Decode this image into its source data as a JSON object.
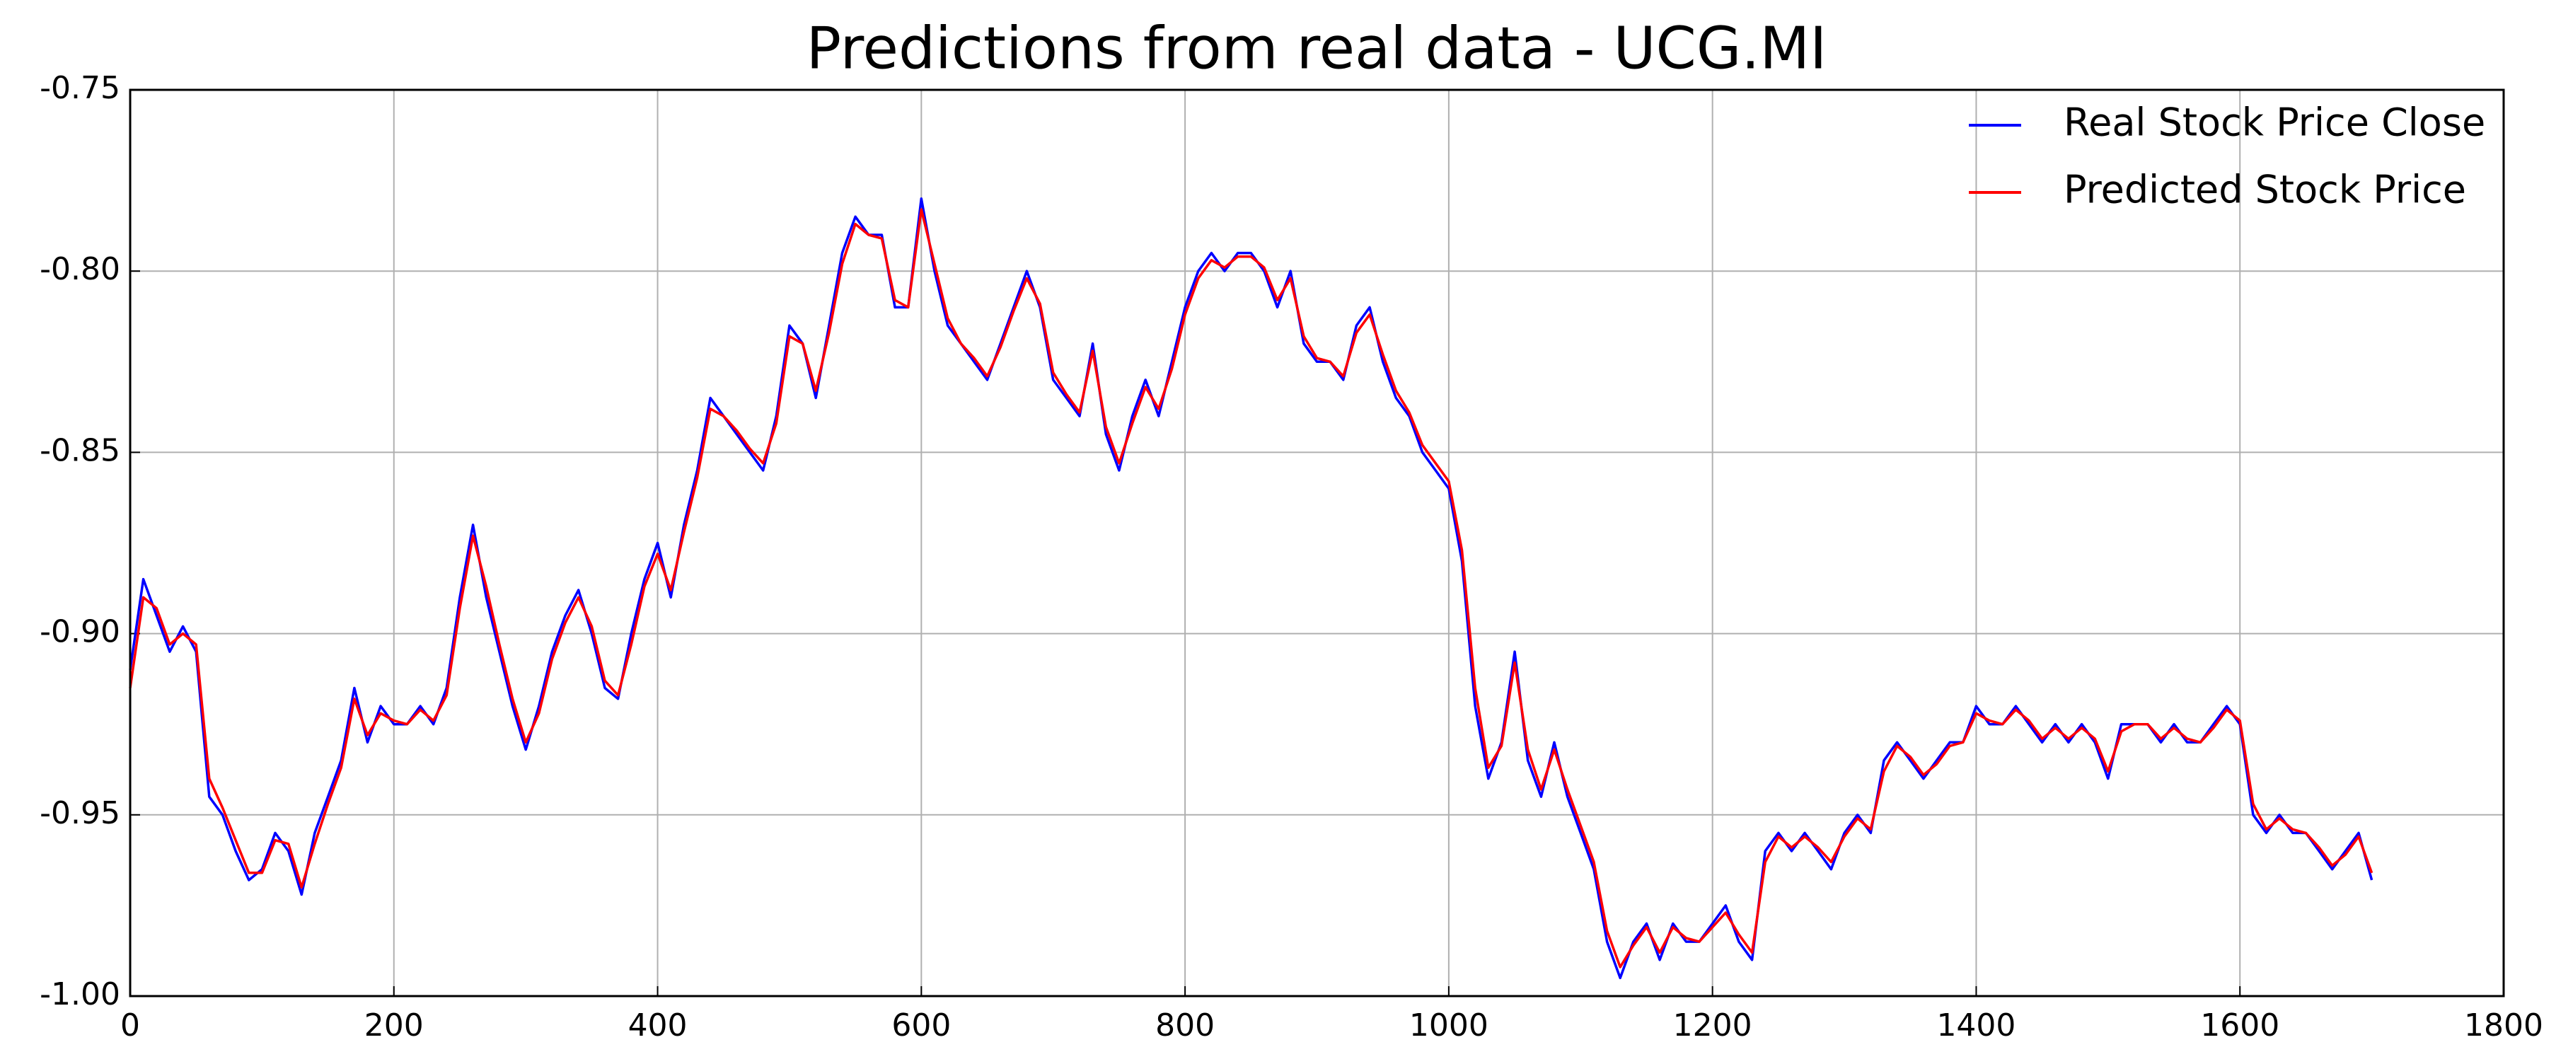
{
  "chart_data": {
    "type": "line",
    "title": "Predictions from real data - UCG.MI",
    "xlim": [
      0,
      1800
    ],
    "xticks": [
      0,
      200,
      400,
      600,
      800,
      1000,
      1200,
      1400,
      1600,
      1800
    ],
    "ylim": [
      -1.0,
      -0.75
    ],
    "yticks": [
      {
        "value": -1.0,
        "label": "-1.00"
      },
      -0.95,
      {
        "value": -0.9,
        "label": "-0.90"
      },
      -0.85,
      {
        "value": -0.8,
        "label": "-0.80"
      },
      -0.75
    ],
    "grid": true,
    "legend": "upper right",
    "x": [
      0,
      10,
      20,
      30,
      40,
      50,
      60,
      70,
      80,
      90,
      100,
      110,
      120,
      130,
      140,
      150,
      160,
      170,
      180,
      190,
      200,
      210,
      220,
      230,
      240,
      250,
      260,
      270,
      280,
      290,
      300,
      310,
      320,
      330,
      340,
      350,
      360,
      370,
      380,
      390,
      400,
      410,
      420,
      430,
      440,
      450,
      460,
      470,
      480,
      490,
      500,
      510,
      520,
      530,
      540,
      550,
      560,
      570,
      580,
      590,
      600,
      610,
      620,
      630,
      640,
      650,
      660,
      670,
      680,
      690,
      700,
      710,
      720,
      730,
      740,
      750,
      760,
      770,
      780,
      790,
      800,
      810,
      820,
      830,
      840,
      850,
      860,
      870,
      880,
      890,
      900,
      910,
      920,
      930,
      940,
      950,
      960,
      970,
      980,
      990,
      1000,
      1010,
      1020,
      1030,
      1040,
      1050,
      1060,
      1070,
      1080,
      1090,
      1100,
      1110,
      1120,
      1130,
      1140,
      1150,
      1160,
      1170,
      1180,
      1190,
      1200,
      1210,
      1220,
      1230,
      1240,
      1250,
      1260,
      1270,
      1280,
      1290,
      1300,
      1310,
      1320,
      1330,
      1340,
      1350,
      1360,
      1370,
      1380,
      1390,
      1400,
      1410,
      1420,
      1430,
      1440,
      1450,
      1460,
      1470,
      1480,
      1490,
      1500,
      1510,
      1520,
      1530,
      1540,
      1550,
      1560,
      1570,
      1580,
      1590,
      1600,
      1610,
      1620,
      1630,
      1640,
      1650,
      1660,
      1670,
      1680,
      1690,
      1700
    ],
    "series": [
      {
        "name": "Real Stock Price Close",
        "color": "#0000ff",
        "values": [
          -0.91,
          -0.885,
          -0.895,
          -0.905,
          -0.898,
          -0.905,
          -0.945,
          -0.95,
          -0.96,
          -0.968,
          -0.965,
          -0.955,
          -0.96,
          -0.972,
          -0.955,
          -0.945,
          -0.935,
          -0.915,
          -0.93,
          -0.92,
          -0.925,
          -0.925,
          -0.92,
          -0.925,
          -0.915,
          -0.89,
          -0.87,
          -0.89,
          -0.905,
          -0.92,
          -0.932,
          -0.92,
          -0.905,
          -0.895,
          -0.888,
          -0.9,
          -0.915,
          -0.918,
          -0.9,
          -0.885,
          -0.875,
          -0.89,
          -0.87,
          -0.855,
          -0.835,
          -0.84,
          -0.845,
          -0.85,
          -0.855,
          -0.84,
          -0.815,
          -0.82,
          -0.835,
          -0.815,
          -0.795,
          -0.785,
          -0.79,
          -0.79,
          -0.81,
          -0.81,
          -0.78,
          -0.8,
          -0.815,
          -0.82,
          -0.825,
          -0.83,
          -0.82,
          -0.81,
          -0.8,
          -0.81,
          -0.83,
          -0.835,
          -0.84,
          -0.82,
          -0.845,
          -0.855,
          -0.84,
          -0.83,
          -0.84,
          -0.825,
          -0.81,
          -0.8,
          -0.795,
          -0.8,
          -0.795,
          -0.795,
          -0.8,
          -0.81,
          -0.8,
          -0.82,
          -0.825,
          -0.825,
          -0.83,
          -0.815,
          -0.81,
          -0.825,
          -0.835,
          -0.84,
          -0.85,
          -0.855,
          -0.86,
          -0.88,
          -0.92,
          -0.94,
          -0.93,
          -0.905,
          -0.935,
          -0.945,
          -0.93,
          -0.945,
          -0.955,
          -0.965,
          -0.985,
          -0.995,
          -0.985,
          -0.98,
          -0.99,
          -0.98,
          -0.985,
          -0.985,
          -0.98,
          -0.975,
          -0.985,
          -0.99,
          -0.96,
          -0.955,
          -0.96,
          -0.955,
          -0.96,
          -0.965,
          -0.955,
          -0.95,
          -0.955,
          -0.935,
          -0.93,
          -0.935,
          -0.94,
          -0.935,
          -0.93,
          -0.93,
          -0.92,
          -0.925,
          -0.925,
          -0.92,
          -0.925,
          -0.93,
          -0.925,
          -0.93,
          -0.925,
          -0.93,
          -0.94,
          -0.925,
          -0.925,
          -0.925,
          -0.93,
          -0.925,
          -0.93,
          -0.93,
          -0.925,
          -0.92,
          -0.925,
          -0.95,
          -0.955,
          -0.95,
          -0.955,
          -0.955,
          -0.96,
          -0.965,
          -0.96,
          -0.955,
          -0.968
        ]
      },
      {
        "name": "Predicted Stock Price",
        "color": "#ff0000",
        "values": [
          -0.915,
          -0.89,
          -0.893,
          -0.903,
          -0.9,
          -0.903,
          -0.94,
          -0.948,
          -0.957,
          -0.966,
          -0.966,
          -0.957,
          -0.958,
          -0.97,
          -0.958,
          -0.947,
          -0.937,
          -0.918,
          -0.928,
          -0.922,
          -0.924,
          -0.925,
          -0.921,
          -0.924,
          -0.917,
          -0.893,
          -0.873,
          -0.887,
          -0.903,
          -0.918,
          -0.93,
          -0.922,
          -0.907,
          -0.897,
          -0.89,
          -0.898,
          -0.913,
          -0.917,
          -0.903,
          -0.887,
          -0.878,
          -0.888,
          -0.872,
          -0.857,
          -0.838,
          -0.84,
          -0.844,
          -0.849,
          -0.853,
          -0.842,
          -0.818,
          -0.82,
          -0.833,
          -0.817,
          -0.798,
          -0.787,
          -0.79,
          -0.791,
          -0.808,
          -0.81,
          -0.783,
          -0.798,
          -0.813,
          -0.82,
          -0.824,
          -0.829,
          -0.821,
          -0.811,
          -0.802,
          -0.809,
          -0.828,
          -0.834,
          -0.839,
          -0.822,
          -0.843,
          -0.853,
          -0.842,
          -0.832,
          -0.838,
          -0.827,
          -0.812,
          -0.802,
          -0.797,
          -0.799,
          -0.796,
          -0.796,
          -0.799,
          -0.808,
          -0.802,
          -0.818,
          -0.824,
          -0.825,
          -0.829,
          -0.817,
          -0.812,
          -0.823,
          -0.833,
          -0.839,
          -0.848,
          -0.853,
          -0.858,
          -0.877,
          -0.915,
          -0.937,
          -0.931,
          -0.908,
          -0.932,
          -0.943,
          -0.932,
          -0.943,
          -0.953,
          -0.963,
          -0.982,
          -0.992,
          -0.986,
          -0.981,
          -0.988,
          -0.981,
          -0.984,
          -0.985,
          -0.981,
          -0.977,
          -0.983,
          -0.988,
          -0.963,
          -0.956,
          -0.959,
          -0.956,
          -0.959,
          -0.963,
          -0.956,
          -0.951,
          -0.954,
          -0.938,
          -0.931,
          -0.934,
          -0.939,
          -0.936,
          -0.931,
          -0.93,
          -0.922,
          -0.924,
          -0.925,
          -0.921,
          -0.924,
          -0.929,
          -0.926,
          -0.929,
          -0.926,
          -0.929,
          -0.938,
          -0.927,
          -0.925,
          -0.925,
          -0.929,
          -0.926,
          -0.929,
          -0.93,
          -0.926,
          -0.921,
          -0.924,
          -0.947,
          -0.954,
          -0.951,
          -0.954,
          -0.955,
          -0.959,
          -0.964,
          -0.961,
          -0.956,
          -0.966
        ]
      }
    ]
  }
}
